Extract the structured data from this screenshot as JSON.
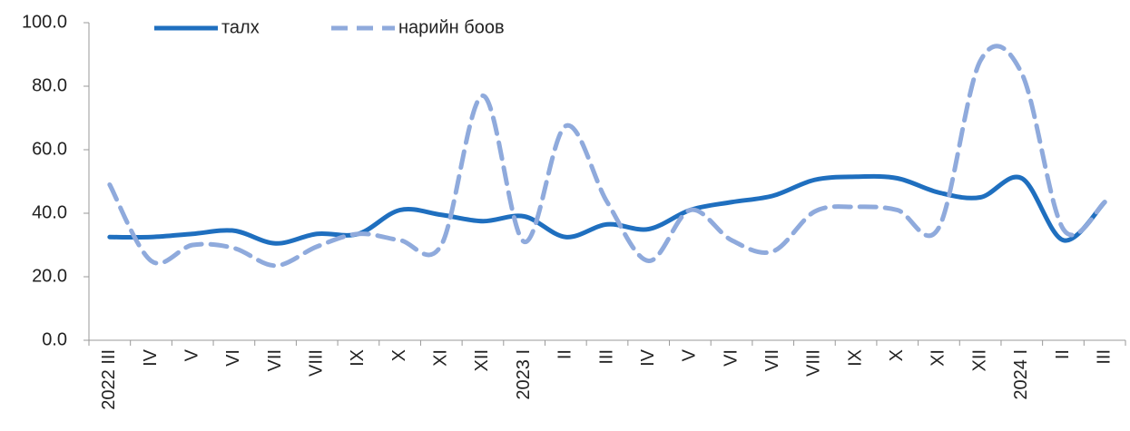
{
  "chart_data": {
    "type": "line",
    "categories": [
      "2022 III",
      "IV",
      "V",
      "VI",
      "VII",
      "VIII",
      "IX",
      "X",
      "XI",
      "XII",
      "2023 I",
      "II",
      "III",
      "IV",
      "V",
      "VI",
      "VII",
      "VIII",
      "IX",
      "X",
      "XI",
      "XII",
      "2024 I",
      "II",
      "III"
    ],
    "series": [
      {
        "name": "талх",
        "color": "#1f6fbf",
        "dash": false,
        "values": [
          32.5,
          32.5,
          33.5,
          34.5,
          30.5,
          33.5,
          33.5,
          41,
          39.5,
          37.5,
          39,
          32.5,
          36.5,
          35,
          41,
          43.5,
          45.5,
          50.5,
          51.5,
          51,
          46.5,
          45,
          51,
          31.5,
          43.5
        ]
      },
      {
        "name": "нарийн боов",
        "color": "#8faadc",
        "dash": true,
        "values": [
          49,
          25,
          30,
          29,
          23.5,
          29.5,
          33.5,
          31.5,
          30,
          77,
          31,
          67.5,
          43.5,
          25,
          41,
          31.5,
          28,
          40.5,
          42,
          41,
          35.5,
          88,
          84,
          35,
          43.5
        ]
      }
    ],
    "ylim": [
      0,
      100
    ],
    "yticks": [
      {
        "value": 0,
        "label": "0.0"
      },
      {
        "value": 20,
        "label": "20.0"
      },
      {
        "value": 40,
        "label": "40.0"
      },
      {
        "value": 60,
        "label": "60.0"
      },
      {
        "value": 80,
        "label": "80.0"
      },
      {
        "value": 100,
        "label": "100.0"
      }
    ],
    "legend": "top"
  }
}
